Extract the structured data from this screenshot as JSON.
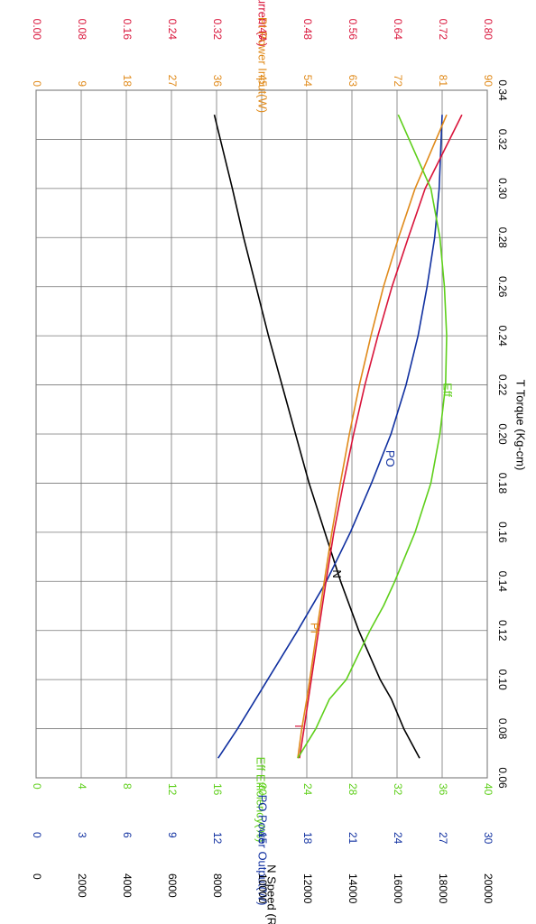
{
  "chart_data": {
    "type": "line",
    "title": "",
    "x_axis": {
      "label": "T   Torque (Kg-cm)",
      "range": [
        0.06,
        0.34
      ],
      "ticks": [
        "0.06",
        "0.08",
        "0.10",
        "0.12",
        "0.14",
        "0.16",
        "0.18",
        "0.20",
        "0.22",
        "0.24",
        "0.26",
        "0.28",
        "0.30",
        "0.32",
        "0.34"
      ]
    },
    "y_axes": [
      {
        "id": "current",
        "label": "I   Current (A)",
        "color": "#d9143a",
        "range": [
          0,
          0.8
        ],
        "ticks": [
          "0.00",
          "0.08",
          "0.16",
          "0.24",
          "0.32",
          "0.40",
          "0.48",
          "0.56",
          "0.64",
          "0.72",
          "0.80"
        ]
      },
      {
        "id": "power_input",
        "label": "PI   Power Input(W)",
        "color": "#e08a1a",
        "range": [
          0,
          90
        ],
        "ticks": [
          "0",
          "9",
          "18",
          "27",
          "36",
          "45",
          "54",
          "63",
          "72",
          "81",
          "90"
        ]
      },
      {
        "id": "efficiency",
        "label": "Eff   Efficiency(%)",
        "color": "#5ecf1a",
        "range": [
          0,
          40
        ],
        "ticks": [
          "0",
          "4",
          "8",
          "12",
          "16",
          "20",
          "24",
          "28",
          "32",
          "36",
          "40"
        ]
      },
      {
        "id": "power_output",
        "label": "PO   Power Output(W)",
        "color": "#1030a0",
        "range": [
          0,
          30
        ],
        "ticks": [
          "0",
          "3",
          "6",
          "9",
          "12",
          "15",
          "18",
          "21",
          "24",
          "27",
          "30"
        ]
      },
      {
        "id": "speed",
        "label": "N   Speed (RPM)",
        "color": "#000000",
        "range": [
          0,
          20000
        ],
        "ticks": [
          "0",
          "2000",
          "4000",
          "6000",
          "8000",
          "10000",
          "12000",
          "14000",
          "16000",
          "18000",
          "20000"
        ]
      }
    ],
    "series": [
      {
        "name": "N",
        "axis": "speed",
        "color": "#000000",
        "label_at": [
          0.143,
          13300
        ],
        "x": [
          0.068,
          0.08,
          0.092,
          0.1,
          0.12,
          0.14,
          0.16,
          0.18,
          0.2,
          0.22,
          0.24,
          0.26,
          0.28,
          0.3,
          0.33
        ],
        "y": [
          17000,
          16300,
          15750,
          15250,
          14300,
          13500,
          12800,
          12100,
          11500,
          10900,
          10300,
          9750,
          9200,
          8700,
          7900
        ]
      },
      {
        "name": "PO",
        "axis": "power_output",
        "color": "#1030a0",
        "label_at": [
          0.19,
          23.5
        ],
        "x": [
          0.068,
          0.08,
          0.1,
          0.12,
          0.14,
          0.16,
          0.18,
          0.2,
          0.22,
          0.24,
          0.26,
          0.28,
          0.3,
          0.33
        ],
        "y": [
          12.1,
          13.4,
          15.4,
          17.4,
          19.3,
          20.9,
          22.3,
          23.6,
          24.6,
          25.4,
          26.0,
          26.5,
          26.8,
          27.0
        ]
      },
      {
        "name": "I",
        "axis": "current",
        "color": "#d9143a",
        "label_at": [
          0.081,
          0.465
        ],
        "x": [
          0.068,
          0.08,
          0.1,
          0.12,
          0.14,
          0.16,
          0.18,
          0.2,
          0.22,
          0.24,
          0.26,
          0.28,
          0.3,
          0.33
        ],
        "y": [
          0.467,
          0.475,
          0.488,
          0.501,
          0.514,
          0.528,
          0.545,
          0.563,
          0.583,
          0.606,
          0.631,
          0.66,
          0.69,
          0.755
        ]
      },
      {
        "name": "PI",
        "axis": "power_input",
        "color": "#e08a1a",
        "label_at": [
          0.121,
          55.4
        ],
        "x": [
          0.068,
          0.08,
          0.092,
          0.1,
          0.12,
          0.14,
          0.16,
          0.18,
          0.2,
          0.22,
          0.24,
          0.26,
          0.28,
          0.3,
          0.33
        ],
        "y": [
          52.2,
          53.0,
          54.0,
          54.6,
          56.0,
          57.5,
          59.0,
          60.7,
          62.5,
          64.5,
          66.8,
          69.3,
          72.3,
          75.6,
          81.9
        ]
      },
      {
        "name": "Eff",
        "axis": "efficiency",
        "color": "#5ecf1a",
        "label_at": [
          0.218,
          36.4
        ],
        "x": [
          0.068,
          0.08,
          0.092,
          0.1,
          0.12,
          0.13,
          0.14,
          0.16,
          0.18,
          0.2,
          0.22,
          0.24,
          0.26,
          0.28,
          0.3,
          0.33
        ],
        "y": [
          23.2,
          24.8,
          26.0,
          27.5,
          29.6,
          30.8,
          31.8,
          33.6,
          35.0,
          35.8,
          36.3,
          36.4,
          36.2,
          35.8,
          35.0,
          32.1
        ]
      }
    ]
  }
}
